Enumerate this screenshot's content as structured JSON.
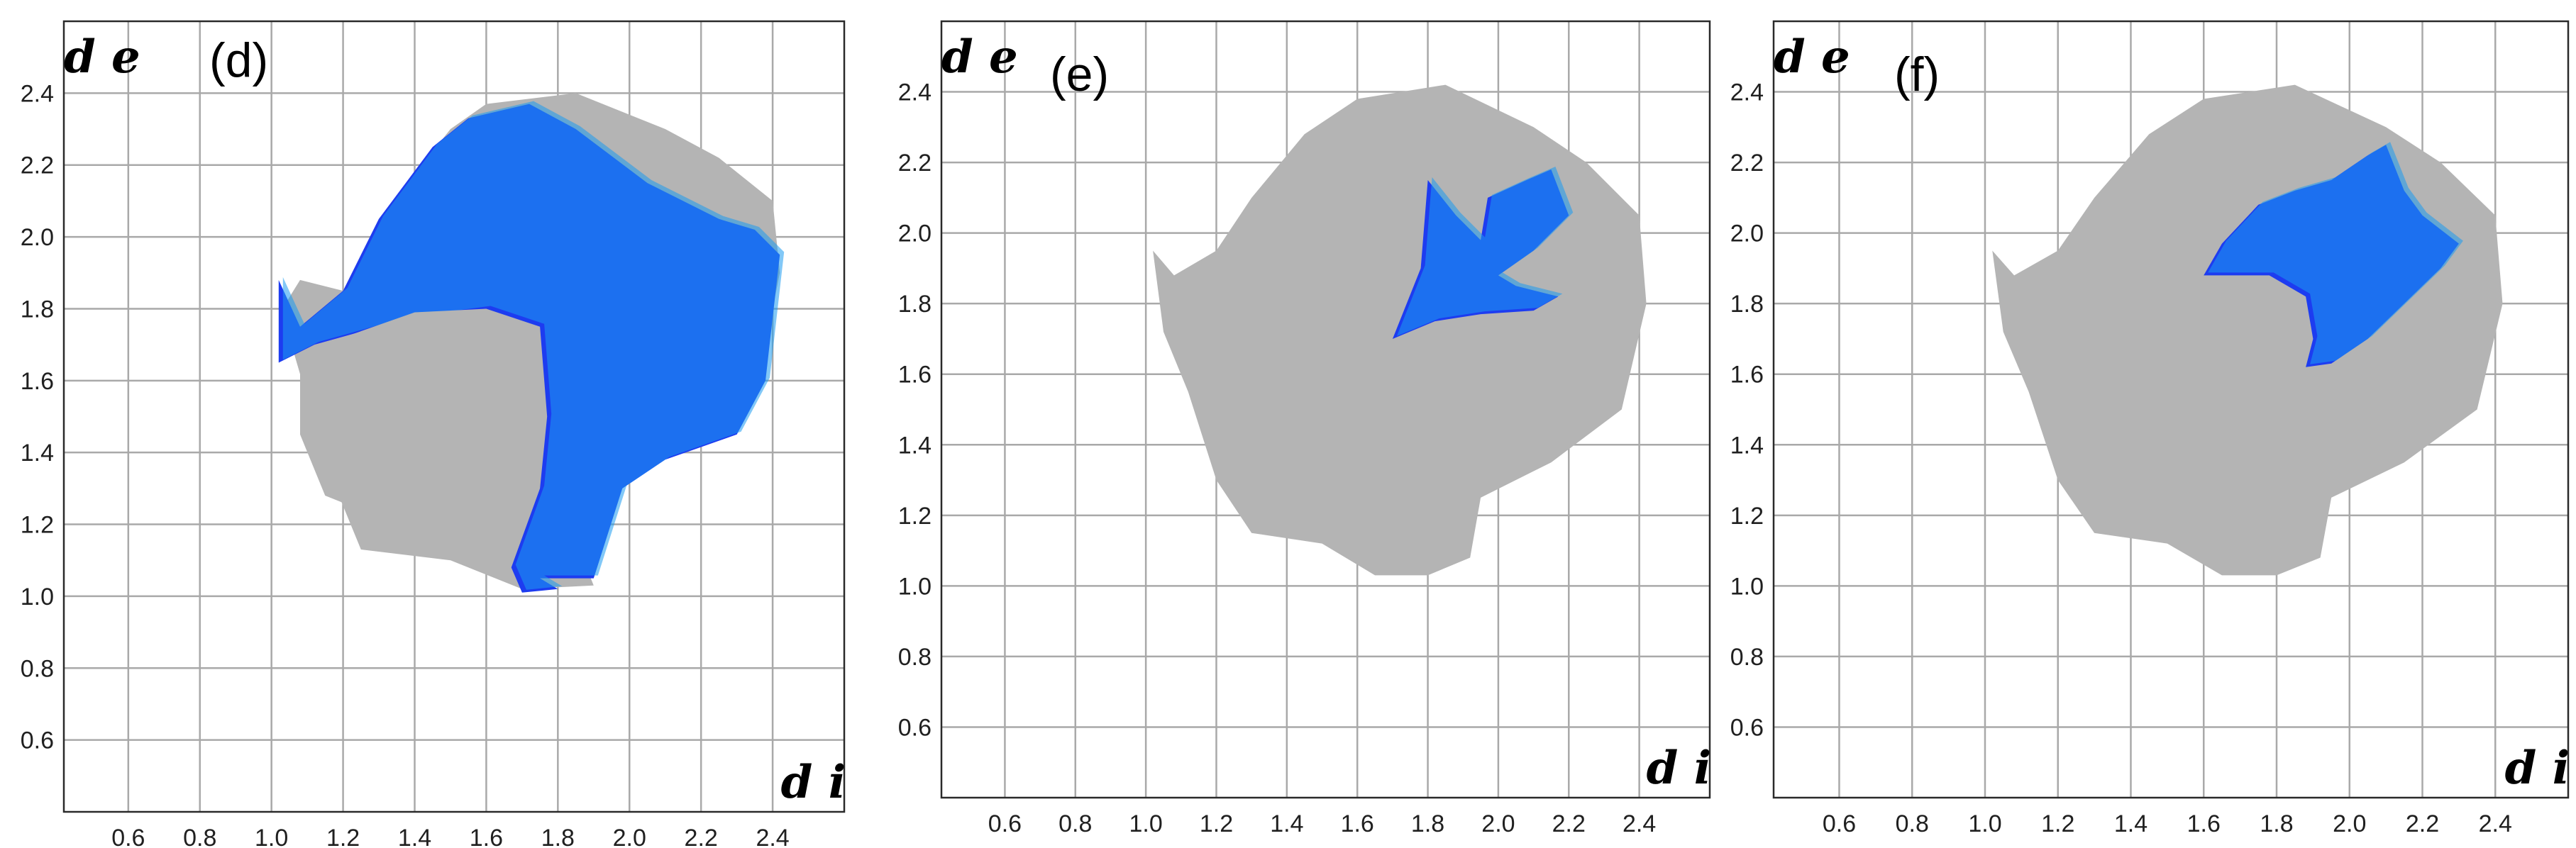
{
  "chart_data": [
    {
      "type": "heatmap",
      "panel_label": "(d)",
      "xlabel": "d i",
      "ylabel": "d e",
      "x_ticks": [
        "0.6",
        "0.8",
        "1.0",
        "1.2",
        "1.4",
        "1.6",
        "1.8",
        "2.0",
        "2.2",
        "2.4"
      ],
      "y_ticks": [
        "0.6",
        "0.8",
        "1.0",
        "1.2",
        "1.4",
        "1.6",
        "1.8",
        "2.0",
        "2.2",
        "2.4"
      ],
      "xlim": [
        0.42,
        2.6
      ],
      "ylim": [
        0.4,
        2.6
      ],
      "grid": true,
      "background_color": "#b4b4b4",
      "highlight_color": "#1d3cf0",
      "background_region": [
        [
          1.05,
          1.72
        ],
        [
          1.1,
          1.55
        ],
        [
          1.18,
          1.3
        ],
        [
          1.25,
          1.13
        ],
        [
          1.5,
          1.1
        ],
        [
          1.7,
          1.02
        ],
        [
          1.9,
          1.03
        ],
        [
          1.88,
          1.08
        ],
        [
          1.95,
          1.3
        ],
        [
          2.15,
          1.42
        ],
        [
          2.35,
          1.55
        ],
        [
          2.42,
          1.9
        ],
        [
          2.4,
          2.1
        ],
        [
          2.25,
          2.22
        ],
        [
          2.1,
          2.3
        ],
        [
          1.85,
          2.4
        ],
        [
          1.6,
          2.37
        ],
        [
          1.5,
          2.3
        ],
        [
          1.3,
          2.05
        ],
        [
          1.2,
          1.85
        ],
        [
          1.08,
          1.88
        ],
        [
          1.03,
          1.8
        ]
      ],
      "highlight_region": [
        [
          1.02,
          1.88
        ],
        [
          1.08,
          1.75
        ],
        [
          1.2,
          1.85
        ],
        [
          1.3,
          2.05
        ],
        [
          1.45,
          2.25
        ],
        [
          1.55,
          2.33
        ],
        [
          1.72,
          2.37
        ],
        [
          1.85,
          2.3
        ],
        [
          2.05,
          2.15
        ],
        [
          2.25,
          2.05
        ],
        [
          2.35,
          2.02
        ],
        [
          2.42,
          1.95
        ],
        [
          2.38,
          1.6
        ],
        [
          2.3,
          1.45
        ],
        [
          2.1,
          1.38
        ],
        [
          1.98,
          1.3
        ],
        [
          1.9,
          1.05
        ],
        [
          1.75,
          1.05
        ],
        [
          1.8,
          1.02
        ],
        [
          1.7,
          1.01
        ],
        [
          1.67,
          1.08
        ],
        [
          1.75,
          1.3
        ],
        [
          1.77,
          1.5
        ],
        [
          1.75,
          1.75
        ],
        [
          1.6,
          1.8
        ],
        [
          1.45,
          1.78
        ],
        [
          1.3,
          1.75
        ],
        [
          1.12,
          1.7
        ],
        [
          1.02,
          1.65
        ]
      ],
      "hole_region": [
        [
          1.08,
          1.65
        ],
        [
          1.2,
          1.72
        ],
        [
          1.4,
          1.79
        ],
        [
          1.6,
          1.8
        ],
        [
          1.72,
          1.7
        ],
        [
          1.73,
          1.5
        ],
        [
          1.68,
          1.28
        ],
        [
          1.55,
          1.22
        ],
        [
          1.35,
          1.2
        ],
        [
          1.15,
          1.28
        ],
        [
          1.08,
          1.45
        ]
      ]
    },
    {
      "type": "heatmap",
      "panel_label": "(e)",
      "xlabel": "d i",
      "ylabel": "d e",
      "x_ticks": [
        "0.6",
        "0.8",
        "1.0",
        "1.2",
        "1.4",
        "1.6",
        "1.8",
        "2.0",
        "2.2",
        "2.4"
      ],
      "y_ticks": [
        "0.6",
        "0.8",
        "1.0",
        "1.2",
        "1.4",
        "1.6",
        "1.8",
        "2.0",
        "2.2",
        "2.4"
      ],
      "xlim": [
        0.42,
        2.6
      ],
      "ylim": [
        0.4,
        2.6
      ],
      "grid": true,
      "background_color": "#b4b4b4",
      "highlight_color": "#1d3cf0",
      "background_region": [
        [
          1.02,
          1.95
        ],
        [
          1.05,
          1.72
        ],
        [
          1.12,
          1.55
        ],
        [
          1.2,
          1.3
        ],
        [
          1.3,
          1.15
        ],
        [
          1.5,
          1.12
        ],
        [
          1.65,
          1.03
        ],
        [
          1.8,
          1.03
        ],
        [
          1.92,
          1.08
        ],
        [
          1.95,
          1.25
        ],
        [
          2.15,
          1.35
        ],
        [
          2.35,
          1.5
        ],
        [
          2.42,
          1.8
        ],
        [
          2.4,
          2.05
        ],
        [
          2.25,
          2.2
        ],
        [
          2.1,
          2.3
        ],
        [
          1.85,
          2.42
        ],
        [
          1.6,
          2.38
        ],
        [
          1.45,
          2.28
        ],
        [
          1.3,
          2.1
        ],
        [
          1.2,
          1.95
        ],
        [
          1.08,
          1.88
        ]
      ],
      "highlight_region": [
        [
          1.7,
          1.7
        ],
        [
          1.78,
          1.9
        ],
        [
          1.8,
          2.15
        ],
        [
          1.88,
          2.05
        ],
        [
          1.95,
          1.98
        ],
        [
          1.97,
          2.1
        ],
        [
          2.08,
          2.15
        ],
        [
          2.15,
          2.18
        ],
        [
          2.2,
          2.05
        ],
        [
          2.1,
          1.95
        ],
        [
          2.0,
          1.88
        ],
        [
          2.05,
          1.85
        ],
        [
          2.17,
          1.82
        ],
        [
          2.1,
          1.78
        ],
        [
          1.95,
          1.77
        ],
        [
          1.82,
          1.75
        ]
      ]
    },
    {
      "type": "heatmap",
      "panel_label": "(f)",
      "xlabel": "d i",
      "ylabel": "d e",
      "x_ticks": [
        "0.6",
        "0.8",
        "1.0",
        "1.2",
        "1.4",
        "1.6",
        "1.8",
        "2.0",
        "2.2",
        "2.4"
      ],
      "y_ticks": [
        "0.6",
        "0.8",
        "1.0",
        "1.2",
        "1.4",
        "1.6",
        "1.8",
        "2.0",
        "2.2",
        "2.4"
      ],
      "xlim": [
        0.42,
        2.6
      ],
      "ylim": [
        0.4,
        2.6
      ],
      "grid": true,
      "background_color": "#b4b4b4",
      "highlight_color": "#1d3cf0",
      "background_region": [
        [
          1.02,
          1.95
        ],
        [
          1.05,
          1.72
        ],
        [
          1.12,
          1.55
        ],
        [
          1.2,
          1.3
        ],
        [
          1.3,
          1.15
        ],
        [
          1.5,
          1.12
        ],
        [
          1.65,
          1.03
        ],
        [
          1.8,
          1.03
        ],
        [
          1.92,
          1.08
        ],
        [
          1.95,
          1.25
        ],
        [
          2.15,
          1.35
        ],
        [
          2.35,
          1.5
        ],
        [
          2.42,
          1.8
        ],
        [
          2.4,
          2.05
        ],
        [
          2.25,
          2.2
        ],
        [
          2.1,
          2.3
        ],
        [
          1.85,
          2.42
        ],
        [
          1.6,
          2.38
        ],
        [
          1.45,
          2.28
        ],
        [
          1.3,
          2.1
        ],
        [
          1.2,
          1.95
        ],
        [
          1.08,
          1.88
        ]
      ],
      "highlight_region": [
        [
          1.6,
          1.88
        ],
        [
          1.65,
          1.97
        ],
        [
          1.75,
          2.08
        ],
        [
          1.85,
          2.12
        ],
        [
          1.95,
          2.15
        ],
        [
          2.05,
          2.22
        ],
        [
          2.1,
          2.25
        ],
        [
          2.15,
          2.12
        ],
        [
          2.2,
          2.05
        ],
        [
          2.3,
          1.97
        ],
        [
          2.25,
          1.9
        ],
        [
          2.15,
          1.8
        ],
        [
          2.05,
          1.7
        ],
        [
          1.95,
          1.63
        ],
        [
          1.88,
          1.62
        ],
        [
          1.9,
          1.7
        ],
        [
          1.88,
          1.82
        ],
        [
          1.78,
          1.88
        ],
        [
          1.68,
          1.88
        ]
      ]
    }
  ]
}
